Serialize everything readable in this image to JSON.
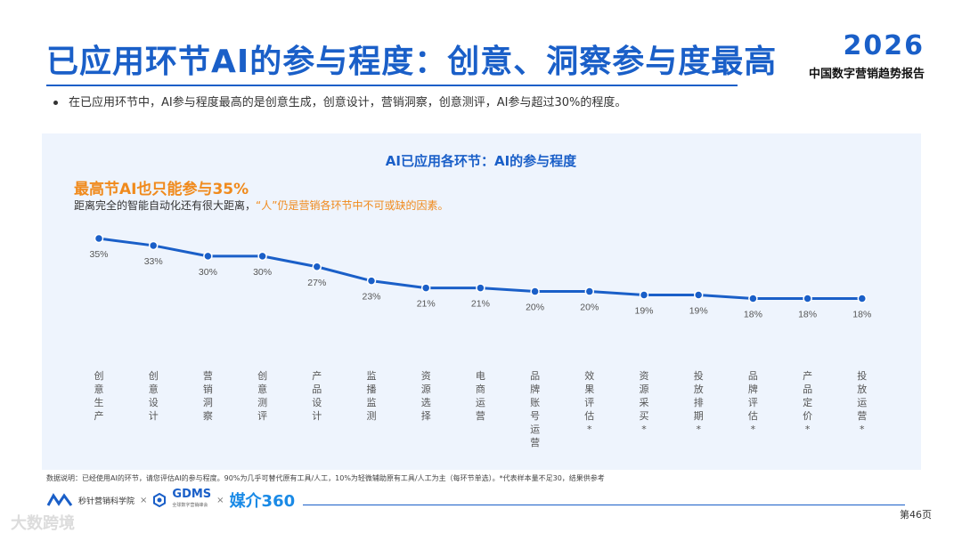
{
  "header": {
    "title": "已应用环节AI的参与程度：创意、洞察参与度最高",
    "brand_year": "2026",
    "brand_sub": "中国数字营销趋势报告"
  },
  "bullet": "在已应用环节中，AI参与程度最高的是创意生成，创意设计，营销洞察，创意测评，AI参与超过30%的程度。",
  "highlight": "最高节AI也只能参与35%",
  "subnote": {
    "part1": "距离完全的智能自动化还有很大距离，",
    "part2": "“人”仍是营销各环节中不可或缺的因素。"
  },
  "chart_data": {
    "type": "line",
    "title": "AI已应用各环节：AI的参与程度",
    "categories": [
      "创意生产",
      "创意设计",
      "营销洞察",
      "创意测评",
      "产品设计",
      "监播监测",
      "资源选择",
      "电商运营",
      "品牌账号运营",
      "效果评估*",
      "资源采买*",
      "投放排期*",
      "品牌评估*",
      "产品定价*",
      "投放运营*"
    ],
    "values": [
      35,
      33,
      30,
      30,
      27,
      23,
      21,
      21,
      20,
      20,
      19,
      19,
      18,
      18,
      18
    ],
    "value_labels": [
      "35%",
      "33%",
      "30%",
      "30%",
      "27%",
      "23%",
      "21%",
      "21%",
      "20%",
      "20%",
      "19%",
      "19%",
      "18%",
      "18%",
      "18%"
    ],
    "line_color": "#1a5fc8"
  },
  "footnote": "数据说明：已经使用AI的环节，请您评估AI的参与程度。90%为几乎可替代原有工具/人工，10%为轻微辅助原有工具/人工为主（每环节单选）。*代表样本量不足30，结果供参考",
  "logos": {
    "org1": "秒针营销科学院",
    "sep": "×",
    "org2": "GDMS",
    "org2_sub": "全球数字营销峰会",
    "org3": "媒介360"
  },
  "page_number": "第46页",
  "watermark": "大数跨境",
  "colors": {
    "brand_blue": "#1a5fc8",
    "accent_orange": "#f08a1c",
    "panel_bg": "#eef4fd"
  }
}
